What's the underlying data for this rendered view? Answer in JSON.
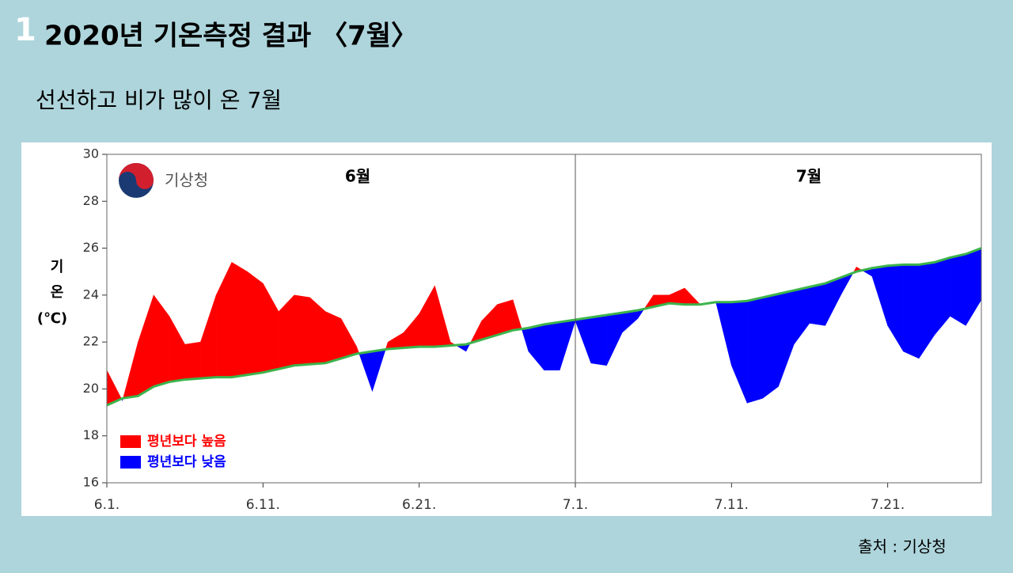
{
  "header": {
    "number": "1",
    "title": "2020년 기온측정 결과 〈7월〉",
    "subtitle": "선선하고 비가 많이 온 7월"
  },
  "chart_data": {
    "type": "area",
    "y_label_lines": [
      "기",
      "온",
      "(℃)"
    ],
    "logo_text": "기상청",
    "annotations": [
      "6월",
      "7월"
    ],
    "categories": [
      "6.1.",
      null,
      null,
      null,
      null,
      null,
      null,
      null,
      null,
      null,
      "6.11.",
      null,
      null,
      null,
      null,
      null,
      null,
      null,
      null,
      null,
      "6.21.",
      null,
      null,
      null,
      null,
      null,
      null,
      null,
      null,
      null,
      "7.1.",
      null,
      null,
      null,
      null,
      null,
      null,
      null,
      null,
      null,
      "7.11.",
      null,
      null,
      null,
      null,
      null,
      null,
      null,
      null,
      null,
      "7.21.",
      null,
      null,
      null,
      null,
      null,
      null
    ],
    "values": [
      20.8,
      19.5,
      22.0,
      24.0,
      23.1,
      21.9,
      22.0,
      24.0,
      25.4,
      25.0,
      24.5,
      23.3,
      24.0,
      23.9,
      23.3,
      23.0,
      21.8,
      19.9,
      22.0,
      22.4,
      23.2,
      24.4,
      22.0,
      21.6,
      22.9,
      23.6,
      23.8,
      21.6,
      20.8,
      20.8,
      22.9,
      21.1,
      21.0,
      22.4,
      23.0,
      24.0,
      24.0,
      24.3,
      23.6,
      23.7,
      21.0,
      19.4,
      19.6,
      20.1,
      21.9,
      22.8,
      22.7,
      24.0,
      25.2,
      24.8,
      22.7,
      21.6,
      21.3,
      22.3,
      23.1,
      22.7,
      23.8
    ],
    "normal": [
      19.3,
      19.6,
      19.7,
      20.1,
      20.3,
      20.4,
      20.45,
      20.5,
      20.5,
      20.6,
      20.7,
      20.85,
      21.0,
      21.05,
      21.1,
      21.3,
      21.5,
      21.6,
      21.7,
      21.75,
      21.8,
      21.8,
      21.85,
      21.9,
      22.1,
      22.3,
      22.5,
      22.6,
      22.75,
      22.85,
      22.95,
      23.05,
      23.15,
      23.25,
      23.35,
      23.5,
      23.65,
      23.6,
      23.6,
      23.7,
      23.7,
      23.75,
      23.9,
      24.05,
      24.2,
      24.35,
      24.5,
      24.75,
      25.0,
      25.15,
      25.25,
      25.3,
      25.3,
      25.4,
      25.6,
      25.75,
      26.0
    ],
    "normal_color": "#3cb44b",
    "legend": [
      {
        "label": "평년보다 높음",
        "color": "#ff0000"
      },
      {
        "label": "평년보다 낮음",
        "color": "#0000ff"
      }
    ],
    "ylim": [
      16,
      30
    ],
    "yticks": [
      16,
      18,
      20,
      22,
      24,
      26,
      28,
      30
    ]
  },
  "source": "출처 : 기상청"
}
